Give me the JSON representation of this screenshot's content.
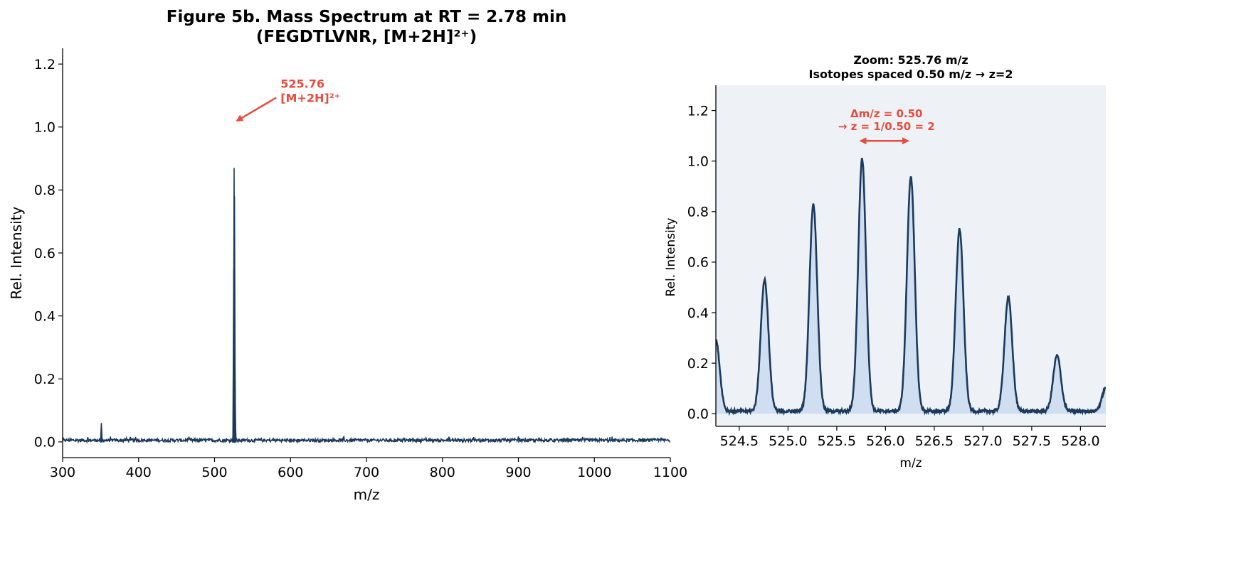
{
  "figure": {
    "title_line1": "Figure 5b.  Mass Spectrum at RT = 2.78 min",
    "title_line2": "(FEGDTLVNR, [M+2H]²⁺)"
  },
  "colors": {
    "trace": "#1b3a5c",
    "annotation": "#e74c3c",
    "zoom_background": "#eef2f7",
    "zoom_fill": "#c9dcf0"
  },
  "chart_data": [
    {
      "type": "line",
      "title": "",
      "xlabel": "m/z",
      "ylabel": "Rel. Intensity",
      "xlim": [
        300,
        1100
      ],
      "ylim": [
        -0.05,
        1.25
      ],
      "xticks": [
        300,
        400,
        500,
        600,
        700,
        800,
        900,
        1000,
        1100
      ],
      "yticks": [
        0.0,
        0.2,
        0.4,
        0.6,
        0.8,
        1.0,
        1.2
      ],
      "grid": false,
      "baseline_noise": 0.01,
      "peaks": [
        {
          "mz": 351.0,
          "intensity": 0.06
        },
        {
          "mz": 524.76,
          "intensity": 0.04
        },
        {
          "mz": 525.26,
          "intensity": 0.55
        },
        {
          "mz": 525.76,
          "intensity": 0.87
        },
        {
          "mz": 526.26,
          "intensity": 0.78
        },
        {
          "mz": 526.76,
          "intensity": 0.28
        },
        {
          "mz": 527.26,
          "intensity": 0.08
        }
      ],
      "annotation": {
        "line1": "525.76",
        "line2": "[M+2H]²⁺",
        "target_mz": 525.76,
        "target_intensity": 1.02,
        "label_mz": 585,
        "label_intensity": 1.1
      }
    },
    {
      "type": "area",
      "title_line1": "Zoom: 525.76 m/z",
      "title_line2": "Isotopes spaced 0.50 m/z → z=2",
      "xlabel": "m/z",
      "ylabel": "Rel. Intensity",
      "xlim": [
        524.26,
        528.26
      ],
      "ylim": [
        -0.05,
        1.3
      ],
      "xticks": [
        524.5,
        525.0,
        525.5,
        526.0,
        526.5,
        527.0,
        527.5,
        528.0
      ],
      "xtick_labels": [
        "524.5",
        "525.0",
        "525.5",
        "526.0",
        "526.5",
        "527.0",
        "527.5",
        "528.0"
      ],
      "yticks": [
        0.0,
        0.2,
        0.4,
        0.6,
        0.8,
        1.0,
        1.2
      ],
      "grid": false,
      "baseline": 0.01,
      "peak_width_mz": 0.04,
      "peaks": [
        {
          "mz": 524.26,
          "intensity": 0.28
        },
        {
          "mz": 524.76,
          "intensity": 0.52
        },
        {
          "mz": 525.26,
          "intensity": 0.82
        },
        {
          "mz": 525.76,
          "intensity": 1.0
        },
        {
          "mz": 526.26,
          "intensity": 0.93
        },
        {
          "mz": 526.76,
          "intensity": 0.72
        },
        {
          "mz": 527.26,
          "intensity": 0.45
        },
        {
          "mz": 527.76,
          "intensity": 0.22
        },
        {
          "mz": 528.26,
          "intensity": 0.09
        }
      ],
      "annotation": {
        "line1": "Δm/z = 0.50",
        "line2": "→ z = 1/0.50 = 2",
        "arrow_start_mz": 525.76,
        "arrow_end_mz": 526.26,
        "arrow_intensity": 1.08,
        "label_mz": 526.01,
        "label_intensity": 1.14
      }
    }
  ]
}
